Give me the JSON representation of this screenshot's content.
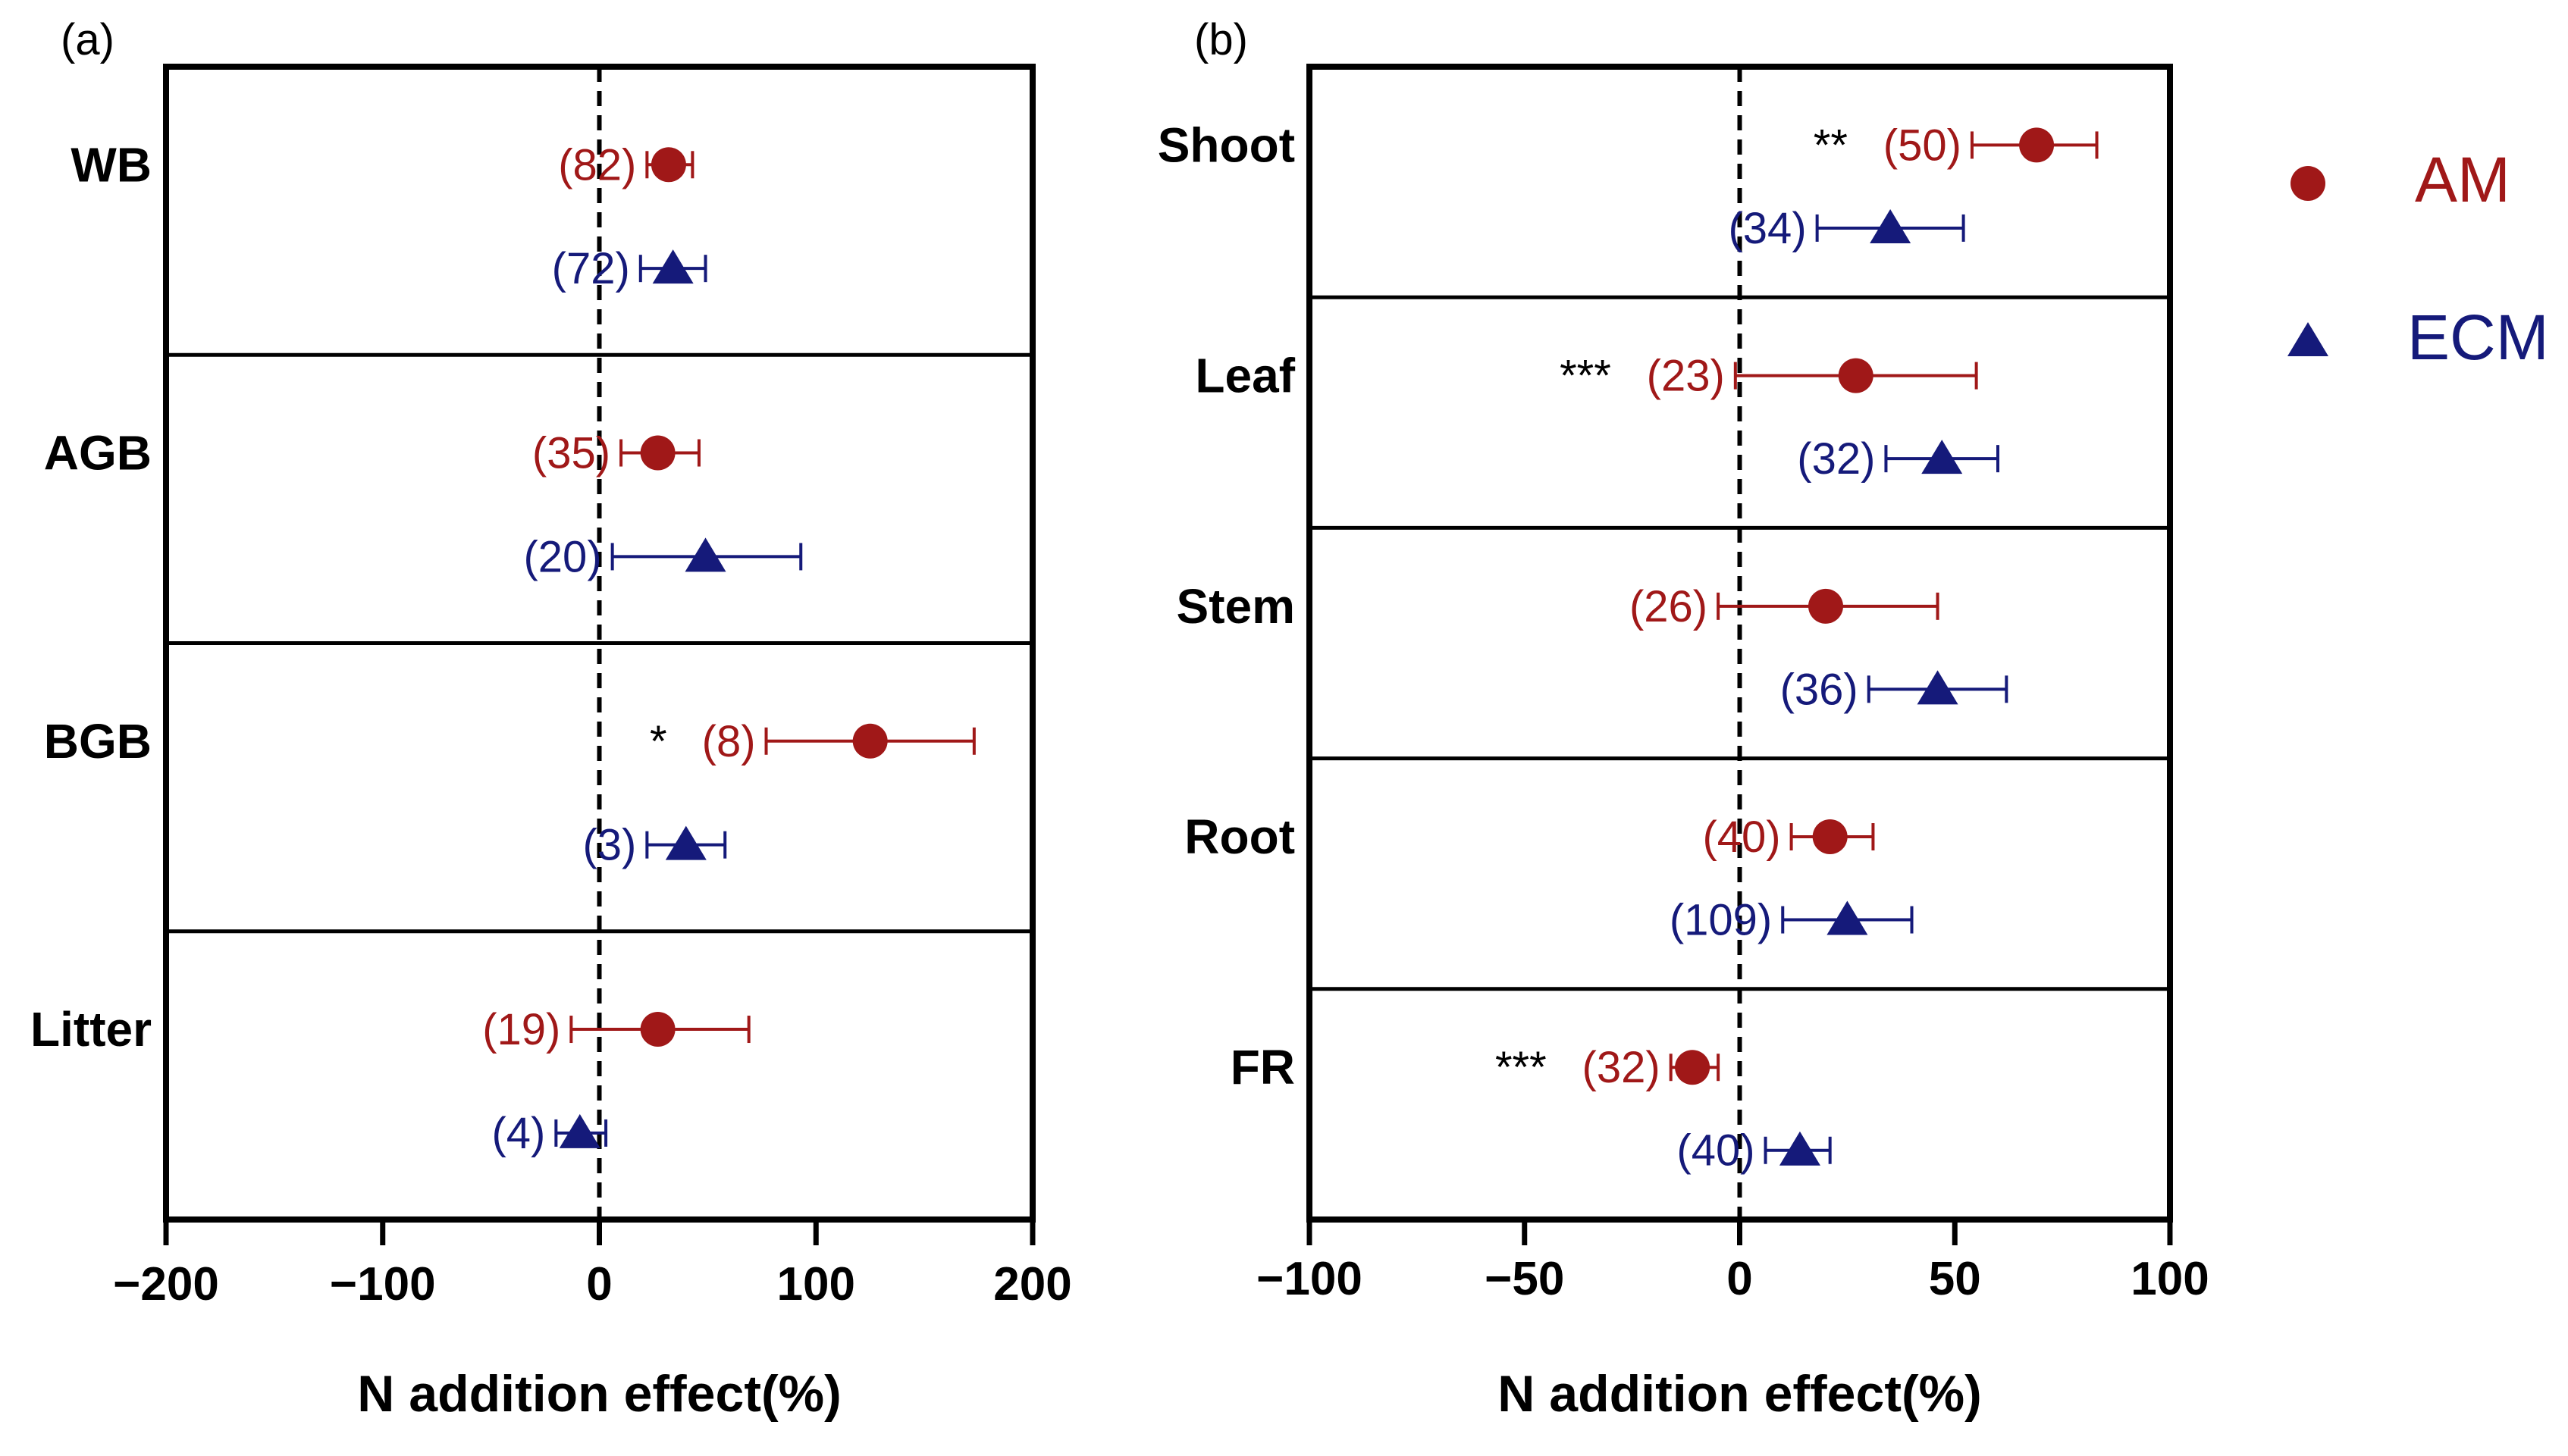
{
  "colors": {
    "AM": "#A01818",
    "ECM": "#151A7A",
    "axis": "#000000"
  },
  "legend": {
    "items": [
      {
        "key": "AM",
        "label": "AM",
        "marker": "circle"
      },
      {
        "key": "ECM",
        "label": "ECM",
        "marker": "triangle"
      }
    ]
  },
  "chart_data": [
    {
      "type": "scatter",
      "panel_label": "(a)",
      "xlabel": "N addition effect(%)",
      "xlim": [
        -200,
        200
      ],
      "xticks": [
        -200,
        -100,
        0,
        100,
        200
      ],
      "xtick_labels": [
        "−200",
        "−100",
        "0",
        "100",
        "200"
      ],
      "grid": false,
      "reference_line": 0,
      "groups": [
        {
          "label": "WB",
          "AM": {
            "mean": 32,
            "lo": 22,
            "hi": 43,
            "n": "(82)",
            "sig": ""
          },
          "ECM": {
            "mean": 34,
            "lo": 19,
            "hi": 49,
            "n": "(72)",
            "sig": ""
          }
        },
        {
          "label": "AGB",
          "AM": {
            "mean": 27,
            "lo": 10,
            "hi": 46,
            "n": "(35)",
            "sig": ""
          },
          "ECM": {
            "mean": 49,
            "lo": 6,
            "hi": 93,
            "n": "(20)",
            "sig": ""
          }
        },
        {
          "label": "BGB",
          "AM": {
            "mean": 125,
            "lo": 77,
            "hi": 173,
            "n": "(8)",
            "sig": "*"
          },
          "ECM": {
            "mean": 40,
            "lo": 22,
            "hi": 58,
            "n": "(3)",
            "sig": ""
          }
        },
        {
          "label": "Litter",
          "AM": {
            "mean": 27,
            "lo": -13,
            "hi": 69,
            "n": "(19)",
            "sig": ""
          },
          "ECM": {
            "mean": -9,
            "lo": -20,
            "hi": 3,
            "n": "(4)",
            "sig": ""
          }
        }
      ]
    },
    {
      "type": "scatter",
      "panel_label": "(b)",
      "xlabel": "N addition effect(%)",
      "xlim": [
        -100,
        100
      ],
      "xticks": [
        -100,
        -50,
        0,
        50,
        100
      ],
      "xtick_labels": [
        "−100",
        "−50",
        "0",
        "50",
        "100"
      ],
      "grid": false,
      "reference_line": 0,
      "groups": [
        {
          "label": "Shoot",
          "AM": {
            "mean": 69,
            "lo": 54,
            "hi": 83,
            "n": "(50)",
            "sig": "**"
          },
          "ECM": {
            "mean": 35,
            "lo": 18,
            "hi": 52,
            "n": "(34)",
            "sig": ""
          }
        },
        {
          "label": "Leaf",
          "AM": {
            "mean": 27,
            "lo": -1,
            "hi": 55,
            "n": "(23)",
            "sig": "***"
          },
          "ECM": {
            "mean": 47,
            "lo": 34,
            "hi": 60,
            "n": "(32)",
            "sig": ""
          }
        },
        {
          "label": "Stem",
          "AM": {
            "mean": 20,
            "lo": -5,
            "hi": 46,
            "n": "(26)",
            "sig": ""
          },
          "ECM": {
            "mean": 46,
            "lo": 30,
            "hi": 62,
            "n": "(36)",
            "sig": ""
          }
        },
        {
          "label": "Root",
          "AM": {
            "mean": 21,
            "lo": 12,
            "hi": 31,
            "n": "(40)",
            "sig": ""
          },
          "ECM": {
            "mean": 25,
            "lo": 10,
            "hi": 40,
            "n": "(109)",
            "sig": ""
          }
        },
        {
          "label": "FR",
          "AM": {
            "mean": -11,
            "lo": -16,
            "hi": -5,
            "n": "(32)",
            "sig": "***"
          },
          "ECM": {
            "mean": 14,
            "lo": 6,
            "hi": 21,
            "n": "(40)",
            "sig": ""
          }
        }
      ]
    }
  ]
}
